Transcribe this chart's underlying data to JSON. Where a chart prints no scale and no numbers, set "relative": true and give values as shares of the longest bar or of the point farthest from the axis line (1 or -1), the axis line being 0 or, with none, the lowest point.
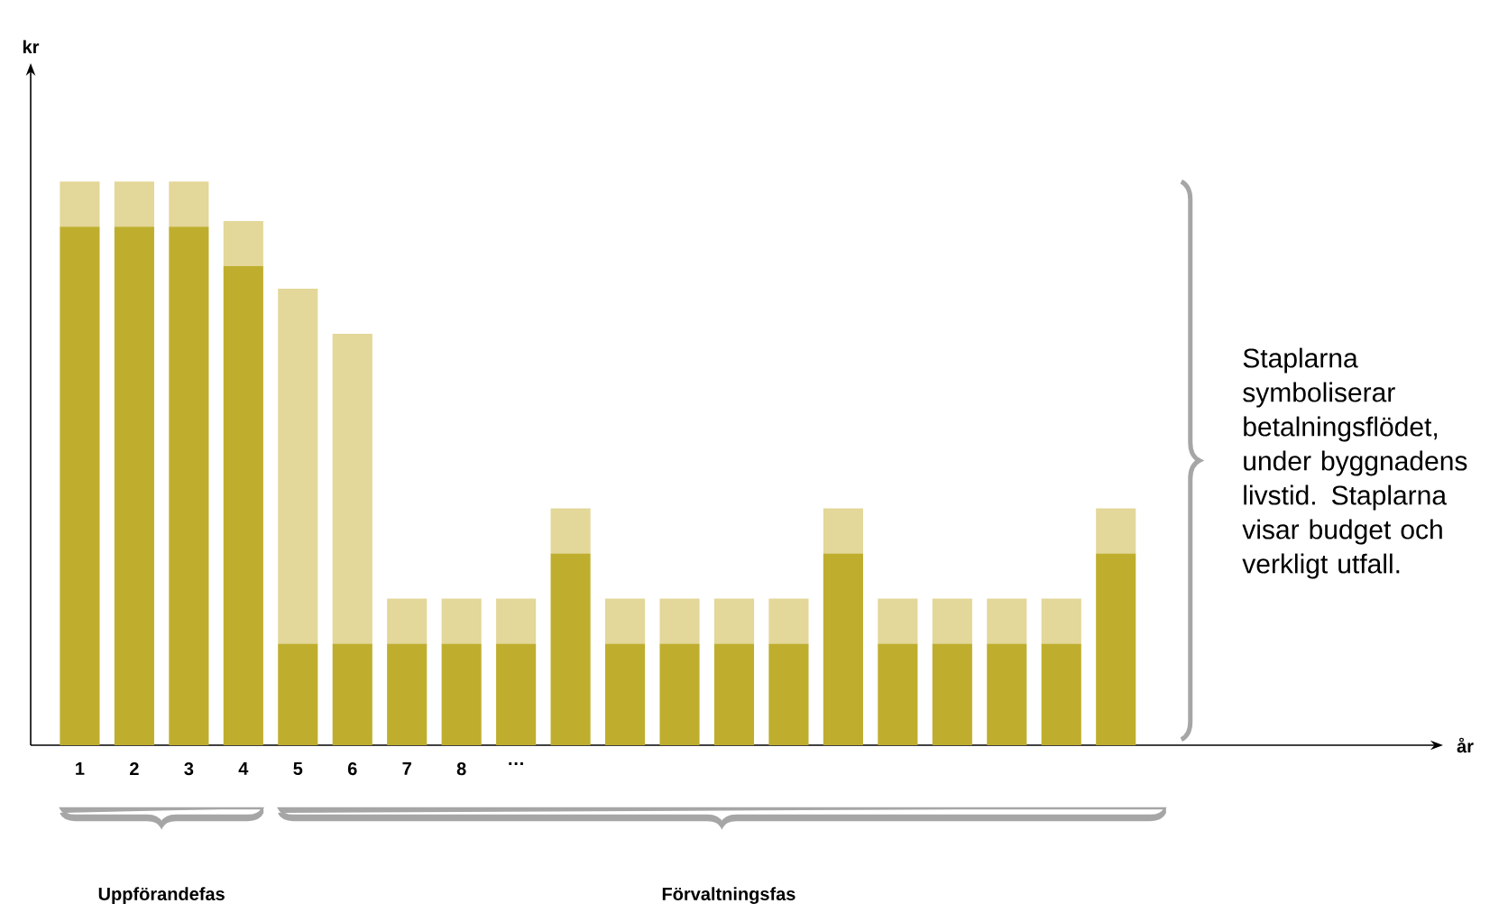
{
  "chart_data": {
    "type": "bar",
    "stacked": true,
    "relative": true,
    "categories": [
      "1",
      "2",
      "3",
      "4",
      "5",
      "6",
      "7",
      "8",
      "…",
      null,
      null,
      null,
      null,
      null,
      null,
      null,
      null,
      null,
      null,
      null
    ],
    "series": [
      {
        "color": "#bfae2e",
        "values": [
          0.92,
          0.92,
          0.92,
          0.85,
          0.18,
          0.18,
          0.18,
          0.18,
          0.18,
          0.34,
          0.18,
          0.18,
          0.18,
          0.18,
          0.34,
          0.18,
          0.18,
          0.18,
          0.18,
          0.34
        ]
      },
      {
        "color": "#e3d799",
        "values": [
          0.08,
          0.08,
          0.08,
          0.08,
          0.63,
          0.55,
          0.08,
          0.08,
          0.08,
          0.08,
          0.08,
          0.08,
          0.08,
          0.08,
          0.08,
          0.08,
          0.08,
          0.08,
          0.08,
          0.08
        ]
      }
    ],
    "annotations": [
      "Uppförandefas",
      "Förvaltningsfas",
      "Staplarna symboliserar betalningsflödet, under byggnadens livstid. Staplarna visar budget och verkligt utfall.",
      "kr",
      "år"
    ]
  }
}
